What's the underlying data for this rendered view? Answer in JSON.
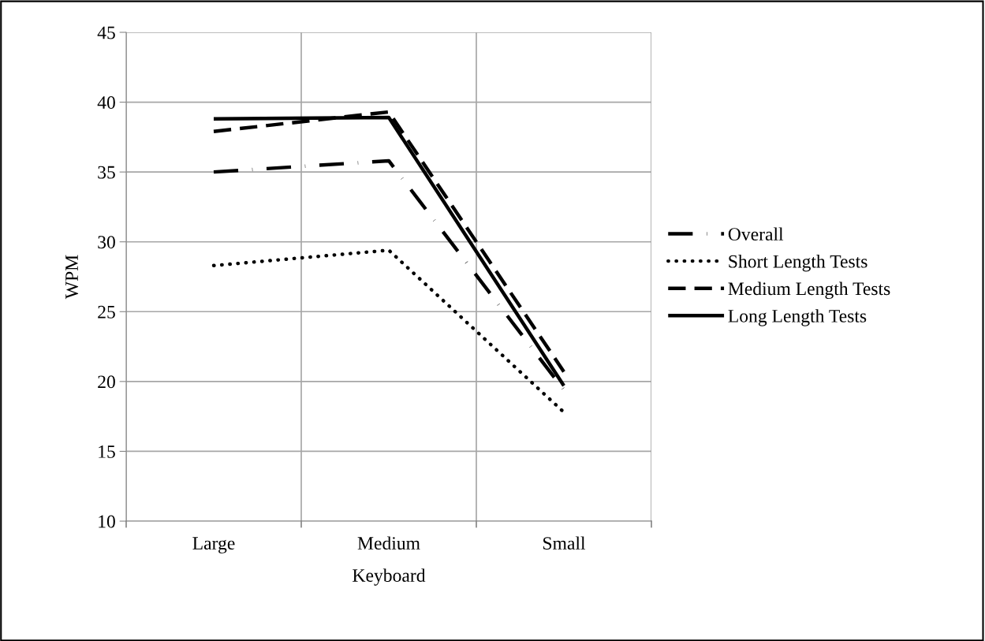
{
  "chart_data": {
    "type": "line",
    "xlabel": "Keyboard",
    "ylabel": "WPM",
    "categories": [
      "Large",
      "Medium",
      "Small"
    ],
    "series": [
      {
        "name": "Overall",
        "color": "#000000",
        "line_style": "dashdot",
        "values": [
          35.0,
          35.8,
          19.4
        ]
      },
      {
        "name": "Short Length Tests",
        "color": "#000000",
        "line_style": "dotted",
        "values": [
          28.3,
          29.4,
          17.8
        ]
      },
      {
        "name": "Medium Length Tests",
        "color": "#000000",
        "line_style": "dashed",
        "values": [
          37.9,
          39.3,
          20.7
        ]
      },
      {
        "name": "Long Length Tests",
        "color": "#000000",
        "line_style": "solid",
        "values": [
          38.8,
          38.9,
          19.7
        ]
      }
    ],
    "ylim": [
      10,
      45
    ],
    "yticks": [
      10,
      15,
      20,
      25,
      30,
      35,
      40,
      45
    ],
    "grid": true,
    "legend": "right",
    "marker": "none"
  }
}
